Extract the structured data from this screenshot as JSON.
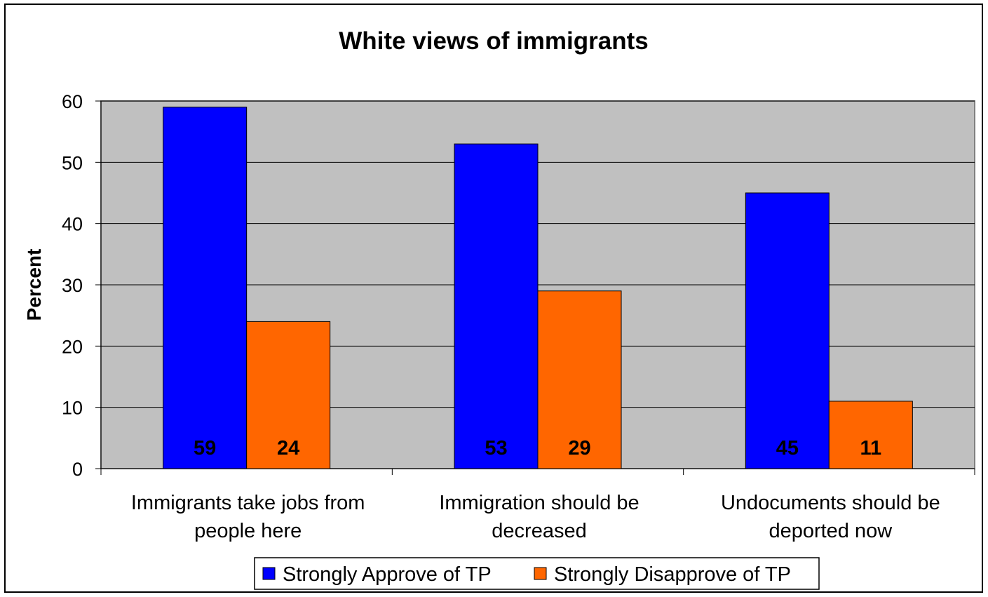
{
  "chart_data": {
    "type": "bar",
    "title": "White views of immigrants",
    "ylabel": "Percent",
    "xlabel": "",
    "ylim": [
      0,
      60
    ],
    "yticks": [
      0,
      10,
      20,
      30,
      40,
      50,
      60
    ],
    "grid": true,
    "categories": [
      [
        "Immigrants take jobs from",
        "people here"
      ],
      [
        "Immigration should be",
        "decreased"
      ],
      [
        "Undocuments should be",
        "deported now"
      ]
    ],
    "series": [
      {
        "name": "Strongly Approve of TP",
        "color": "#0000ff",
        "values": [
          59,
          53,
          45
        ]
      },
      {
        "name": "Strongly Disapprove of TP",
        "color": "#ff6600",
        "values": [
          24,
          29,
          11
        ]
      }
    ],
    "legend": "bottom-center",
    "plot_background": "#c0c0c0"
  }
}
